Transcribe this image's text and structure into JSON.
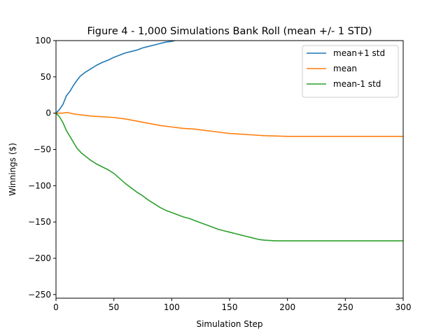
{
  "chart_data": {
    "type": "line",
    "title": "Figure 4 - 1,000 Simulations Bank Roll (mean +/- 1 STD)",
    "xlabel": "Simulation Step",
    "ylabel": "Winnings ($)",
    "xlim": [
      0,
      300
    ],
    "ylim": [
      -255,
      100
    ],
    "xticks": [
      0,
      50,
      100,
      150,
      200,
      250,
      300
    ],
    "yticks": [
      -250,
      -200,
      -150,
      -100,
      -50,
      0,
      50,
      100
    ],
    "yticks_labels": [
      "−250",
      "−200",
      "−150",
      "−100",
      "−50",
      "0",
      "50",
      "100"
    ],
    "grid": false,
    "legend_position": "top-right",
    "series": [
      {
        "name": "mean+1 std",
        "color": "#1f77b4",
        "x": [
          0,
          3,
          6,
          9,
          12,
          15,
          18,
          21,
          25,
          30,
          35,
          40,
          45,
          50,
          55,
          60,
          65,
          70,
          75,
          80,
          85,
          90,
          95,
          100,
          105,
          110,
          115,
          120
        ],
        "y": [
          0,
          5,
          12,
          24,
          30,
          38,
          45,
          51,
          56,
          61,
          66,
          70,
          73,
          77,
          80,
          83,
          85,
          87,
          90,
          92,
          94,
          96,
          98,
          99,
          101,
          103,
          105,
          107
        ]
      },
      {
        "name": "mean",
        "color": "#ff7f0e",
        "x": [
          0,
          5,
          10,
          15,
          20,
          25,
          30,
          40,
          50,
          60,
          70,
          80,
          90,
          100,
          110,
          120,
          130,
          140,
          150,
          160,
          170,
          180,
          190,
          200,
          220,
          250,
          300
        ],
        "y": [
          0,
          0,
          1,
          -1,
          -2,
          -3,
          -4,
          -5,
          -6,
          -8,
          -11,
          -14,
          -17,
          -19,
          -21,
          -22,
          -24,
          -26,
          -28,
          -29,
          -30,
          -31,
          -31.5,
          -32,
          -32,
          -32,
          -32
        ]
      },
      {
        "name": "mean-1 std",
        "color": "#2ca02c",
        "x": [
          0,
          3,
          6,
          9,
          12,
          15,
          18,
          22,
          26,
          30,
          35,
          40,
          45,
          50,
          55,
          60,
          65,
          70,
          75,
          80,
          85,
          90,
          95,
          100,
          105,
          110,
          115,
          120,
          125,
          130,
          135,
          140,
          145,
          150,
          155,
          160,
          165,
          170,
          175,
          180,
          185,
          190,
          200,
          210,
          220,
          250,
          300
        ],
        "y": [
          0,
          -5,
          -13,
          -24,
          -32,
          -40,
          -48,
          -55,
          -60,
          -65,
          -70,
          -74,
          -78,
          -83,
          -90,
          -97,
          -103,
          -109,
          -114,
          -120,
          -125,
          -130,
          -134,
          -137,
          -140,
          -143,
          -145,
          -148,
          -151,
          -154,
          -157,
          -160,
          -162,
          -164,
          -166,
          -168,
          -170,
          -172,
          -174,
          -175,
          -175.5,
          -176,
          -176,
          -176,
          -176,
          -176,
          -176
        ]
      }
    ]
  }
}
